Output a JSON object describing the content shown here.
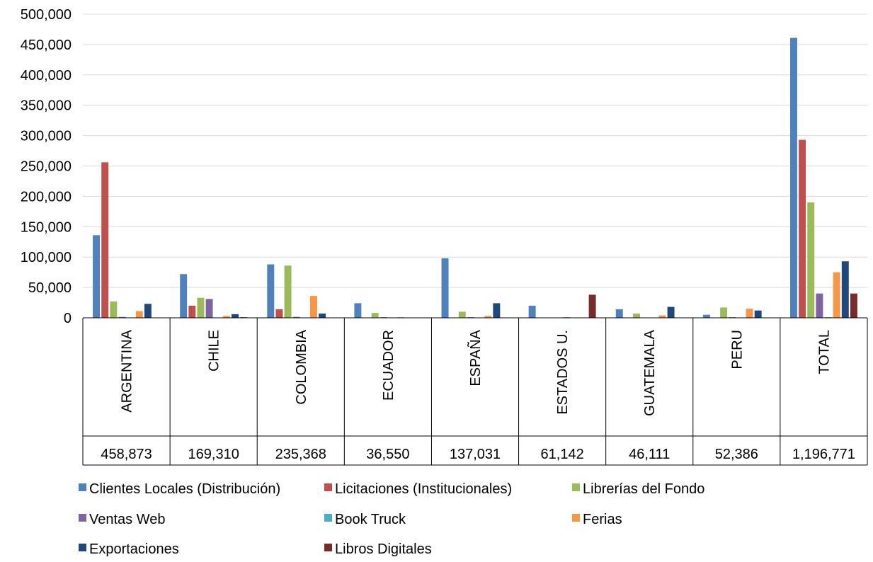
{
  "chart_data": {
    "type": "bar",
    "categories": [
      "ARGENTINA",
      "CHILE",
      "COLOMBIA",
      "ECUADOR",
      "ESPAÑA",
      "ESTADOS U.",
      "GUATEMALA",
      "PERU",
      "TOTAL"
    ],
    "category_totals": [
      "458,873",
      "169,310",
      "235,368",
      "36,550",
      "137,031",
      "61,142",
      "46,111",
      "52,386",
      "1,196,771"
    ],
    "series": [
      {
        "name": "Clientes Locales (Distribución)",
        "color": "#4F81BD",
        "values": [
          136000,
          72000,
          88000,
          24000,
          98000,
          20000,
          14000,
          5000,
          461000
        ]
      },
      {
        "name": "Licitaciones (Institucionales)",
        "color": "#C0504D",
        "values": [
          256000,
          20000,
          14000,
          0,
          0,
          0,
          0,
          0,
          293000
        ]
      },
      {
        "name": "Librerías del Fondo",
        "color": "#9BBB59",
        "values": [
          27000,
          33000,
          86000,
          8000,
          10000,
          0,
          7000,
          17000,
          190000
        ]
      },
      {
        "name": "Ventas Web",
        "color": "#8064A2",
        "values": [
          1500,
          31000,
          1500,
          1000,
          1000,
          0,
          0,
          1000,
          40000
        ]
      },
      {
        "name": "Book Truck",
        "color": "#4BACC6",
        "values": [
          0,
          0,
          0,
          0,
          0,
          1000,
          0,
          0,
          1000
        ]
      },
      {
        "name": "Ferias",
        "color": "#F79646",
        "values": [
          11000,
          3000,
          36000,
          1000,
          3000,
          0,
          4000,
          15000,
          75000
        ]
      },
      {
        "name": "Exportaciones",
        "color": "#1F497D",
        "values": [
          23000,
          6000,
          7000,
          0,
          24000,
          0,
          18000,
          12000,
          93000
        ]
      },
      {
        "name": "Libros Digitales",
        "color": "#772C2A",
        "values": [
          0,
          1000,
          0,
          0,
          0,
          38000,
          0,
          0,
          40000
        ]
      }
    ],
    "y_ticks": [
      "0",
      "50,000",
      "100,000",
      "150,000",
      "200,000",
      "250,000",
      "300,000",
      "350,000",
      "400,000",
      "450,000",
      "500,000"
    ],
    "ylim": [
      0,
      500000
    ],
    "grid": true,
    "legend_position": "bottom"
  }
}
